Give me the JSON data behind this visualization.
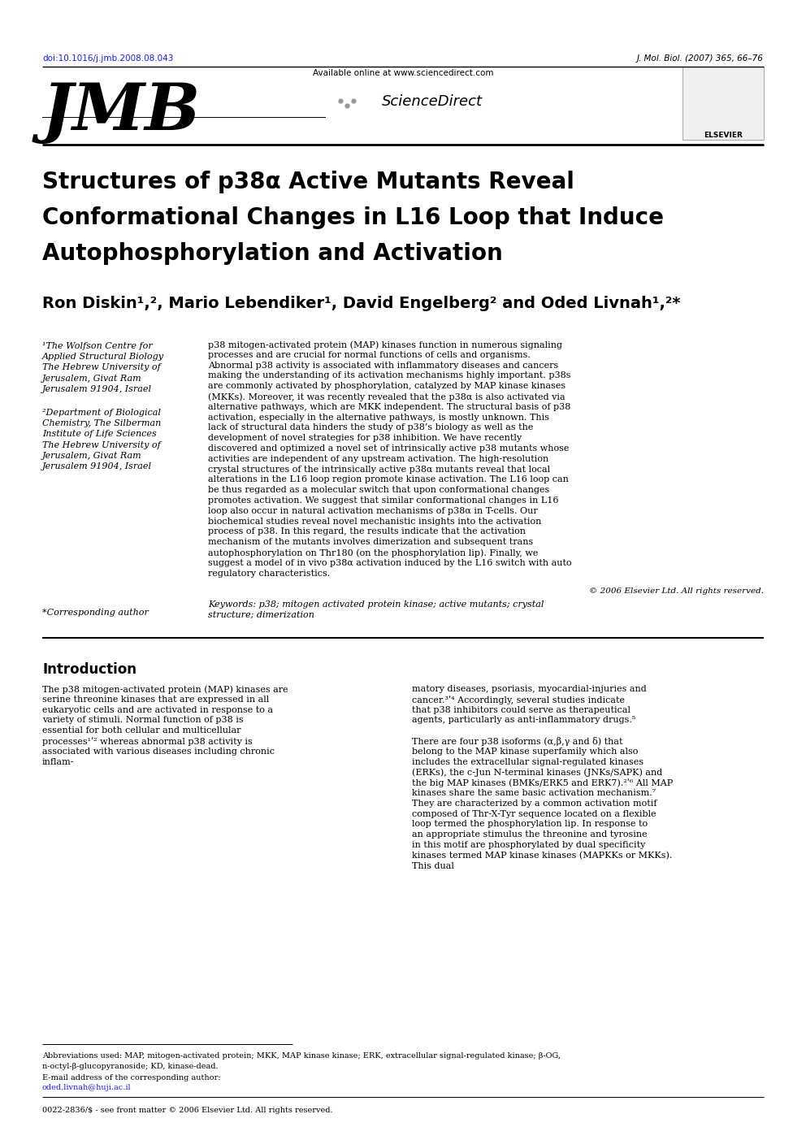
{
  "background_color": "#ffffff",
  "doi_text": "doi:10.1016/j.jmb.2008.08.043",
  "doi_color": "#1a1aff",
  "journal_ref": "J. Mol. Biol. (2007) 365, 66–76",
  "article_title_line1": "Structures of p38α Active Mutants Reveal",
  "article_title_line2": "Conformational Changes in L16 Loop that Induce",
  "article_title_line3": "Autophosphorylation and Activation",
  "author_line": "Ron Diskin¹,², Mario Lebendiker¹, David Engelberg² and Oded Livnah¹,²*",
  "affil1_lines": [
    "¹The Wolfson Centre for",
    "Applied Structural Biology",
    "The Hebrew University of",
    "Jerusalem, Givat Ram",
    "Jerusalem 91904, Israel"
  ],
  "affil2_lines": [
    "²Department of Biological",
    "Chemistry, The Silberman",
    "Institute of Life Sciences",
    "The Hebrew University of",
    "Jerusalem, Givat Ram",
    "Jerusalem 91904, Israel"
  ],
  "corresponding_author": "*Corresponding author",
  "abstract_text": "p38 mitogen-activated protein (MAP) kinases function in numerous signaling processes and are crucial for normal functions of cells and organisms. Abnormal p38 activity is associated with inflammatory diseases and cancers making the understanding of its activation mechanisms highly important. p38s are commonly activated by phosphorylation, catalyzed by MAP kinase kinases (MKKs). Moreover, it was recently revealed that the p38α is also activated via alternative pathways, which are MKK independent. The structural basis of p38 activation, especially in the alternative pathways, is mostly unknown. This lack of structural data hinders the study of p38’s biology as well as the development of novel strategies for p38 inhibition. We have recently discovered and optimized a novel set of intrinsically active p38 mutants whose activities are independent of any upstream activation. The high-resolution crystal structures of the intrinsically active p38α mutants reveal that local alterations in the L16 loop region promote kinase activation. The L16 loop can be thus regarded as a molecular switch that upon conformational changes promotes activation. We suggest that similar conformational changes in L16 loop also occur in natural activation mechanisms of p38α in T-cells. Our biochemical studies reveal novel mechanistic insights into the activation process of p38. In this regard, the results indicate that the activation mechanism of the mutants involves dimerization and subsequent trans autophosphorylation on Thr180 (on the phosphorylation lip). Finally, we suggest a model of in vivo p38α activation induced by the L16 switch with auto regulatory characteristics.",
  "copyright_text": "© 2006 Elsevier Ltd. All rights reserved.",
  "keywords_label": "Keywords:",
  "keywords_text": "p38; mitogen activated protein kinase; active mutants; crystal structure; dimerization",
  "abbreviations_text": "Abbreviations used: MAP, mitogen-activated protein; MKK, MAP kinase kinase; ERK, extracellular signal-regulated kinase; β-OG,",
  "abbreviations_text2": "n-octyl-β-glucopyranoside; KD, kinase-dead.",
  "email_label": "E-mail address of the corresponding author:",
  "email_addr": "oded.livnah@huji.ac.il",
  "issn_text": "0022-2836/$ - see front matter © 2006 Elsevier Ltd. All rights reserved.",
  "intro_title": "Introduction",
  "intro_col1_text": "The p38 mitogen-activated protein (MAP) kinases are serine threonine kinases that are expressed in all eukaryotic cells and are activated in response to a variety of stimuli. Normal function of p38 is essential for both cellular and multicellular processes¹ʹ² whereas abnormal p38 activity is associated with various diseases including chronic inflam-",
  "intro_col2_para1": "matory diseases, psoriasis, myocardial-injuries and cancer.³ʹ⁴ Accordingly, several studies indicate that p38 inhibitors could serve as therapeutical agents, particularly as anti-inflammatory drugs.⁵",
  "intro_col2_para2": "There are four p38 isoforms (α,β,γ and δ) that belong to the MAP kinase superfamily which also includes the extracellular signal-regulated kinases (ERKs), the c-Jun N-terminal kinases (JNKs/SAPK) and the big MAP kinases (BMKs/ERK5 and ERK7).²ʹ⁶ All MAP kinases share the same basic activation mechanism.⁷ They are characterized by a common activation motif composed of Thr-X-Tyr sequence located on a flexible loop termed the phosphorylation lip. In response to an appropriate stimulus the threonine and tyrosine in this motif are phosphorylated by dual specificity kinases termed MAP kinase kinases (MAPKKs or MKKs). This dual"
}
